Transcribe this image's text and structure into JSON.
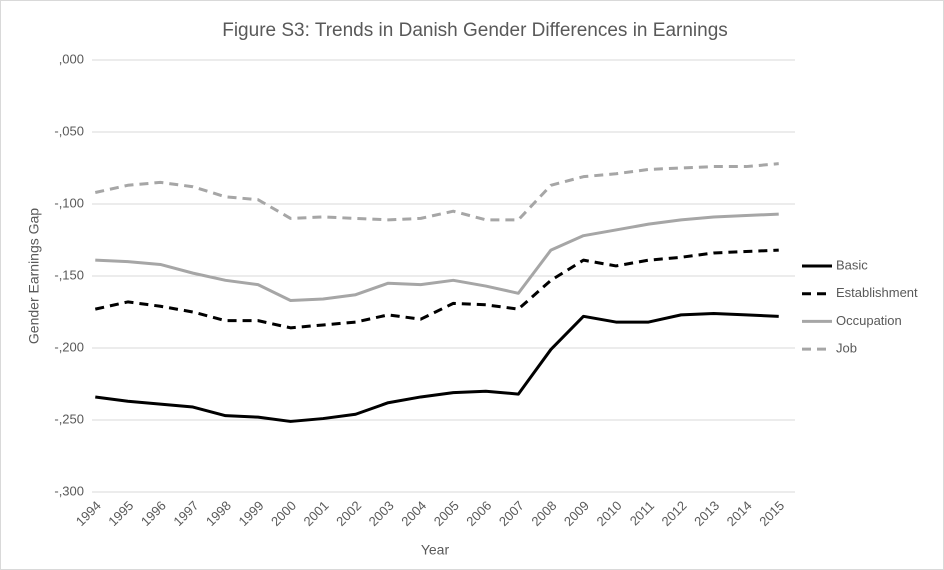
{
  "chart_data": {
    "type": "line",
    "title": "Figure S3: Trends in Danish Gender Differences in Earnings",
    "x_label": "Year",
    "y_label": "Gender Earnings Gap",
    "categories": [
      "1994",
      "1995",
      "1996",
      "1997",
      "1998",
      "1999",
      "2000",
      "2001",
      "2002",
      "2003",
      "2004",
      "2005",
      "2006",
      "2007",
      "2008",
      "2009",
      "2010",
      "2011",
      "2012",
      "2013",
      "2014",
      "2015"
    ],
    "series": [
      {
        "name": "Basic",
        "color": "#000000",
        "line_style": "solid",
        "values": [
          -0.234,
          -0.237,
          -0.239,
          -0.241,
          -0.247,
          -0.248,
          -0.251,
          -0.249,
          -0.246,
          -0.238,
          -0.234,
          -0.231,
          -0.23,
          -0.232,
          -0.201,
          -0.178,
          -0.182,
          -0.182,
          -0.177,
          -0.176,
          -0.177,
          -0.178
        ]
      },
      {
        "name": "Establishment",
        "color": "#000000",
        "line_style": "dashed",
        "values": [
          -0.173,
          -0.168,
          -0.171,
          -0.175,
          -0.181,
          -0.181,
          -0.186,
          -0.184,
          -0.182,
          -0.177,
          -0.18,
          -0.169,
          -0.17,
          -0.173,
          -0.153,
          -0.139,
          -0.143,
          -0.139,
          -0.137,
          -0.134,
          -0.133,
          -0.132
        ]
      },
      {
        "name": "Occupation",
        "color": "#a6a6a6",
        "line_style": "solid",
        "values": [
          -0.139,
          -0.14,
          -0.142,
          -0.148,
          -0.153,
          -0.156,
          -0.167,
          -0.166,
          -0.163,
          -0.155,
          -0.156,
          -0.153,
          -0.157,
          -0.162,
          -0.132,
          -0.122,
          -0.118,
          -0.114,
          -0.111,
          -0.109,
          -0.108,
          -0.107
        ]
      },
      {
        "name": "Job",
        "color": "#a6a6a6",
        "line_style": "dashed",
        "values": [
          -0.092,
          -0.087,
          -0.085,
          -0.088,
          -0.095,
          -0.097,
          -0.11,
          -0.109,
          -0.11,
          -0.111,
          -0.11,
          -0.105,
          -0.111,
          -0.111,
          -0.087,
          -0.081,
          -0.079,
          -0.076,
          -0.075,
          -0.074,
          -0.074,
          -0.072
        ]
      }
    ],
    "ylim": [
      -0.3,
      0
    ],
    "yticks": [
      {
        "value": -0.3,
        "label": "-,300"
      },
      {
        "value": -0.25,
        "label": "-,250"
      },
      {
        "value": -0.2,
        "label": "-,200"
      },
      {
        "value": -0.15,
        "label": "-,150"
      },
      {
        "value": -0.1,
        "label": "-,100"
      },
      {
        "value": -0.05,
        "label": "-,050"
      },
      {
        "value": 0,
        "label": ",000"
      }
    ],
    "grid": true,
    "legend_position": "right"
  }
}
